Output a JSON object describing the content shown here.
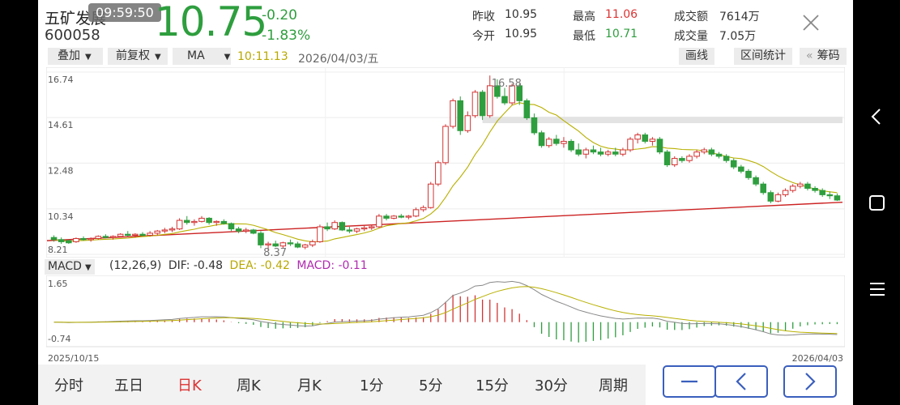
{
  "header": {
    "clock": "09:59:50",
    "stock_name": "五矿发展",
    "stock_code": "600058",
    "price": "10.75",
    "change": "-0.20",
    "change_pct": "-1.83%",
    "stats": {
      "prev_close_label": "昨收",
      "prev_close": "10.95",
      "open_label": "今开",
      "open": "10.95",
      "high_label": "最高",
      "high": "11.06",
      "low_label": "最低",
      "low": "10.71",
      "amount_label": "成交额",
      "amount": "7614万",
      "volume_label": "成交量",
      "volume": "7.05万"
    }
  },
  "toolbar": {
    "overlay": "叠加",
    "adjust": "前复权",
    "indicator": "MA",
    "ma_value": "10:11.13",
    "date": "2026/04/03/五",
    "draw_line": "画线",
    "interval_stats": "区间统计",
    "chips": "筹码",
    "chips_prefix": "«"
  },
  "macd_panel": {
    "selector": "MACD",
    "params": "(12,26,9)",
    "dif": "DIF: -0.48",
    "dea": "DEA: -0.42",
    "macd": "MACD: -0.11"
  },
  "tabs": [
    "分时",
    "五日",
    "日K",
    "周K",
    "月K",
    "1分",
    "5分",
    "15分",
    "30分",
    "周期"
  ],
  "active_tab": "日K",
  "colors": {
    "up": "#d33333",
    "down": "#2e9e3e",
    "ma": "#b8b000",
    "trend": "#cc2222",
    "dif": "#888888",
    "dea": "#b8b000",
    "accent": "#3a5fbd"
  },
  "icons": {
    "close": "close-icon",
    "zoom_out": "minus-icon",
    "prev": "chevron-left-icon",
    "next": "chevron-right-icon",
    "back": "back-icon",
    "home": "square-icon",
    "menu": "menu-icon"
  },
  "chart_data": [
    {
      "type": "candlestick",
      "y_ticks": [
        "16.74",
        "14.61",
        "12.48",
        "10.34",
        "8.21"
      ],
      "ylim": [
        8.21,
        16.74
      ],
      "x_start_label": "2025/10/15",
      "x_end_label": "2026/04/03",
      "annotations": {
        "max_label": "16.58",
        "min_label": "8.37"
      },
      "candles": [
        [
          9.0,
          9.1,
          8.8,
          8.9
        ],
        [
          8.9,
          9.0,
          8.7,
          8.8
        ],
        [
          8.85,
          8.9,
          8.7,
          8.75
        ],
        [
          8.8,
          9.0,
          8.75,
          8.95
        ],
        [
          8.95,
          9.05,
          8.85,
          8.9
        ],
        [
          8.9,
          9.0,
          8.8,
          8.95
        ],
        [
          8.95,
          9.1,
          8.9,
          9.05
        ],
        [
          9.05,
          9.15,
          8.95,
          9.0
        ],
        [
          9.0,
          9.1,
          8.9,
          9.05
        ],
        [
          9.05,
          9.2,
          9.0,
          9.15
        ],
        [
          9.15,
          9.3,
          9.05,
          9.1
        ],
        [
          9.1,
          9.2,
          9.0,
          9.15
        ],
        [
          9.15,
          9.25,
          9.05,
          9.1
        ],
        [
          9.1,
          9.3,
          9.05,
          9.2
        ],
        [
          9.2,
          9.35,
          9.1,
          9.3
        ],
        [
          9.3,
          9.45,
          9.2,
          9.35
        ],
        [
          9.35,
          9.5,
          9.25,
          9.4
        ],
        [
          9.4,
          9.9,
          9.35,
          9.8
        ],
        [
          9.8,
          10.0,
          9.6,
          9.7
        ],
        [
          9.7,
          9.85,
          9.55,
          9.75
        ],
        [
          9.75,
          10.0,
          9.7,
          9.9
        ],
        [
          9.9,
          9.95,
          9.6,
          9.7
        ],
        [
          9.7,
          9.8,
          9.55,
          9.75
        ],
        [
          9.75,
          9.85,
          9.6,
          9.65
        ],
        [
          9.65,
          9.7,
          9.3,
          9.4
        ],
        [
          9.4,
          9.5,
          9.2,
          9.3
        ],
        [
          9.3,
          9.45,
          9.2,
          9.35
        ],
        [
          9.35,
          9.4,
          9.15,
          9.2
        ],
        [
          9.2,
          9.3,
          8.5,
          8.65
        ],
        [
          8.65,
          8.8,
          8.37,
          8.7
        ],
        [
          8.7,
          8.85,
          8.55,
          8.6
        ],
        [
          8.6,
          8.8,
          8.5,
          8.75
        ],
        [
          8.75,
          8.9,
          8.6,
          8.7
        ],
        [
          8.7,
          8.8,
          8.5,
          8.55
        ],
        [
          8.55,
          8.7,
          8.45,
          8.65
        ],
        [
          8.65,
          8.9,
          8.55,
          8.8
        ],
        [
          8.8,
          9.6,
          8.75,
          9.5
        ],
        [
          9.5,
          9.7,
          9.3,
          9.4
        ],
        [
          9.4,
          9.8,
          9.35,
          9.7
        ],
        [
          9.7,
          9.75,
          9.3,
          9.35
        ],
        [
          9.35,
          9.5,
          9.2,
          9.3
        ],
        [
          9.3,
          9.45,
          9.2,
          9.4
        ],
        [
          9.4,
          9.55,
          9.3,
          9.45
        ],
        [
          9.45,
          9.6,
          9.35,
          9.5
        ],
        [
          9.5,
          10.1,
          9.45,
          10.0
        ],
        [
          10.0,
          10.1,
          9.8,
          9.9
        ],
        [
          9.9,
          10.05,
          9.85,
          10.0
        ],
        [
          10.0,
          10.1,
          9.9,
          9.95
        ],
        [
          9.95,
          10.05,
          9.85,
          10.0
        ],
        [
          10.0,
          10.4,
          9.95,
          10.3
        ],
        [
          10.3,
          10.5,
          10.2,
          10.4
        ],
        [
          10.4,
          11.6,
          10.35,
          11.5
        ],
        [
          11.5,
          12.6,
          11.4,
          12.5
        ],
        [
          12.5,
          14.3,
          12.4,
          14.2
        ],
        [
          14.2,
          15.5,
          14.1,
          15.4
        ],
        [
          15.4,
          15.6,
          13.8,
          14.0
        ],
        [
          14.0,
          14.9,
          13.9,
          14.7
        ],
        [
          14.7,
          15.9,
          14.6,
          15.8
        ],
        [
          15.8,
          15.9,
          14.5,
          14.7
        ],
        [
          14.7,
          16.58,
          14.6,
          16.1
        ],
        [
          16.1,
          16.4,
          15.5,
          15.6
        ],
        [
          15.6,
          16.0,
          15.2,
          15.3
        ],
        [
          15.3,
          16.2,
          15.2,
          16.1
        ],
        [
          16.1,
          16.2,
          15.2,
          15.4
        ],
        [
          15.4,
          15.5,
          14.5,
          14.6
        ],
        [
          14.6,
          14.8,
          13.8,
          13.9
        ],
        [
          13.9,
          14.0,
          13.2,
          13.3
        ],
        [
          13.3,
          13.7,
          13.2,
          13.6
        ],
        [
          13.6,
          13.8,
          13.3,
          13.4
        ],
        [
          13.4,
          13.7,
          13.2,
          13.5
        ],
        [
          13.5,
          13.6,
          13.0,
          13.1
        ],
        [
          13.1,
          13.4,
          12.8,
          12.9
        ],
        [
          12.9,
          13.2,
          12.7,
          13.1
        ],
        [
          13.1,
          13.3,
          12.9,
          13.0
        ],
        [
          13.0,
          13.2,
          12.8,
          12.9
        ],
        [
          12.9,
          13.1,
          12.8,
          13.0
        ],
        [
          13.0,
          13.2,
          12.8,
          12.9
        ],
        [
          12.9,
          13.2,
          12.8,
          13.1
        ],
        [
          13.1,
          13.7,
          13.0,
          13.6
        ],
        [
          13.6,
          13.9,
          13.4,
          13.8
        ],
        [
          13.8,
          13.9,
          13.4,
          13.5
        ],
        [
          13.5,
          13.7,
          13.3,
          13.6
        ],
        [
          13.6,
          13.7,
          12.9,
          13.0
        ],
        [
          13.0,
          13.1,
          12.3,
          12.4
        ],
        [
          12.4,
          12.8,
          12.3,
          12.7
        ],
        [
          12.7,
          12.8,
          12.5,
          12.6
        ],
        [
          12.6,
          12.9,
          12.5,
          12.8
        ],
        [
          12.8,
          13.1,
          12.7,
          13.0
        ],
        [
          13.0,
          13.2,
          12.9,
          13.1
        ],
        [
          13.1,
          13.2,
          12.8,
          12.9
        ],
        [
          12.9,
          13.0,
          12.7,
          12.8
        ],
        [
          12.8,
          12.9,
          12.5,
          12.6
        ],
        [
          12.6,
          12.7,
          12.2,
          12.3
        ],
        [
          12.3,
          12.4,
          12.0,
          12.1
        ],
        [
          12.1,
          12.2,
          11.7,
          11.8
        ],
        [
          11.8,
          11.9,
          11.4,
          11.5
        ],
        [
          11.5,
          11.6,
          11.0,
          11.1
        ],
        [
          11.1,
          11.2,
          10.6,
          10.7
        ],
        [
          10.7,
          11.1,
          10.65,
          11.0
        ],
        [
          11.0,
          11.3,
          10.9,
          11.2
        ],
        [
          11.2,
          11.5,
          11.1,
          11.4
        ],
        [
          11.4,
          11.6,
          11.3,
          11.5
        ],
        [
          11.5,
          11.6,
          11.2,
          11.3
        ],
        [
          11.3,
          11.4,
          11.1,
          11.2
        ],
        [
          11.2,
          11.3,
          10.9,
          11.0
        ],
        [
          11.0,
          11.15,
          10.8,
          10.95
        ],
        [
          10.95,
          11.06,
          10.71,
          10.75
        ]
      ],
      "trendline": {
        "from": 8.85,
        "to": 10.65
      }
    },
    {
      "type": "bar+line",
      "y_ticks": [
        "1.65",
        "-0.74"
      ],
      "ylim": [
        -0.74,
        1.65
      ]
    }
  ]
}
